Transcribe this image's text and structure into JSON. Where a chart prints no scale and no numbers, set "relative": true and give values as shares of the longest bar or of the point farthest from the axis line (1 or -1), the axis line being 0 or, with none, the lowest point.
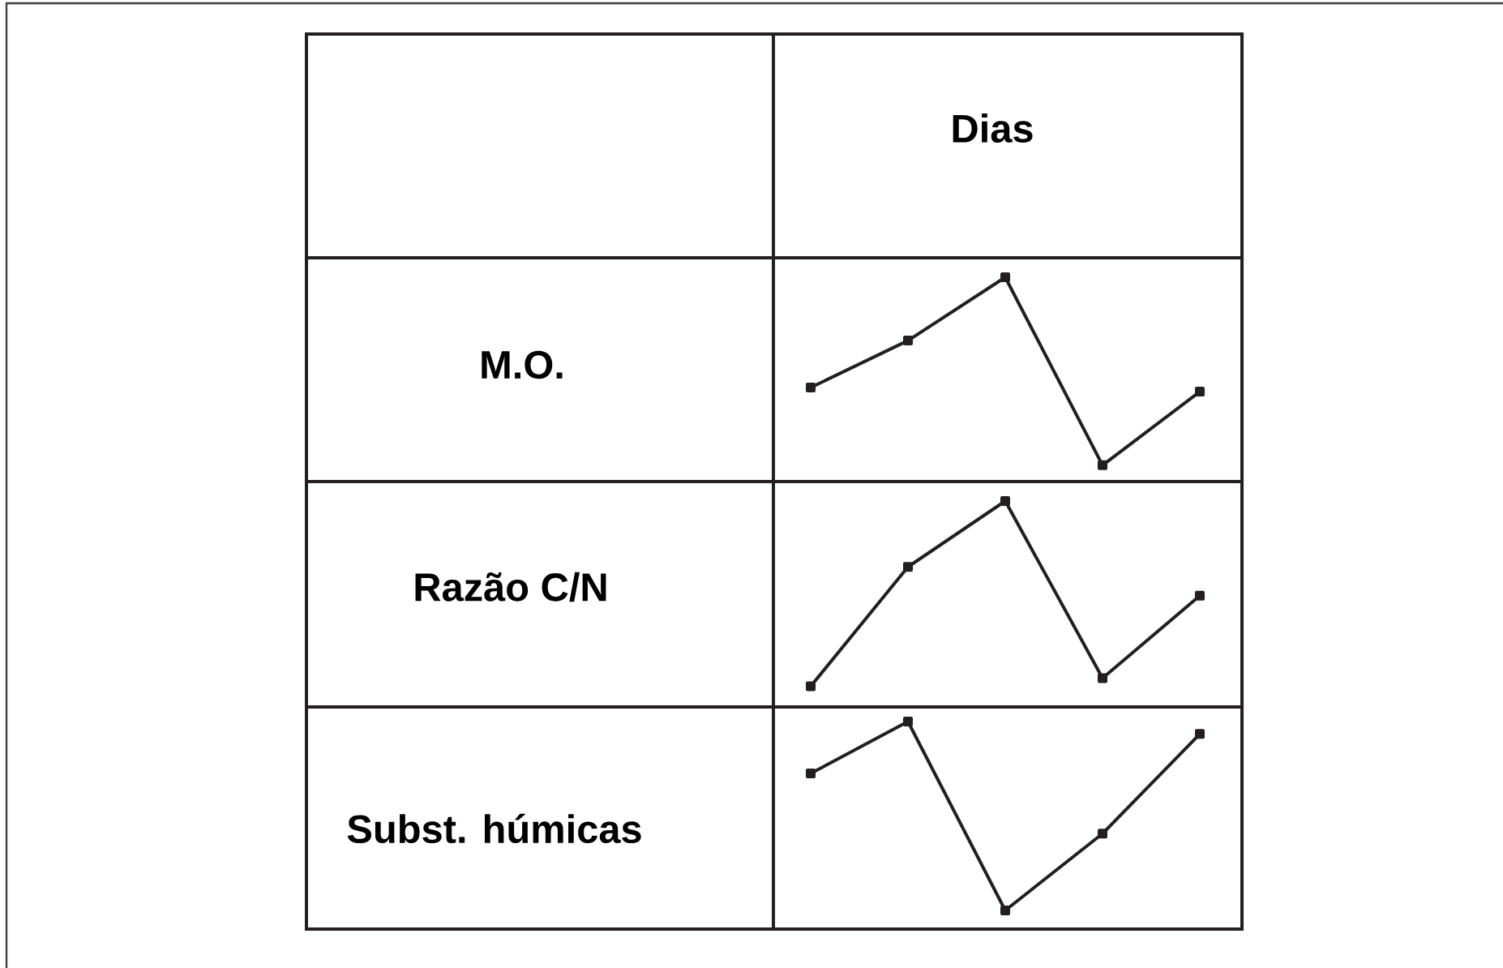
{
  "chart_data": [
    {
      "type": "line",
      "title": "Dias",
      "ylabel": "M.O.",
      "categories": [
        null,
        null,
        null,
        null,
        null
      ],
      "values": [
        0.46,
        0.69,
        1,
        0.08,
        0.44
      ],
      "color": "#231f20",
      "relative": true,
      "marker": "square"
    },
    {
      "type": "line",
      "ylabel": "Razão C/N",
      "categories": [
        null,
        null,
        null,
        null,
        null
      ],
      "values": [
        0.1,
        0.68,
        1,
        0.14,
        0.54
      ],
      "color": "#231f20",
      "relative": true,
      "marker": "square"
    },
    {
      "type": "line",
      "ylabel": "Subst. húmicas",
      "categories": [
        null,
        null,
        null,
        null,
        null
      ],
      "values": [
        0.75,
        1,
        0.09,
        0.46,
        0.94
      ],
      "color": "#231f20",
      "relative": true,
      "marker": "square"
    }
  ]
}
